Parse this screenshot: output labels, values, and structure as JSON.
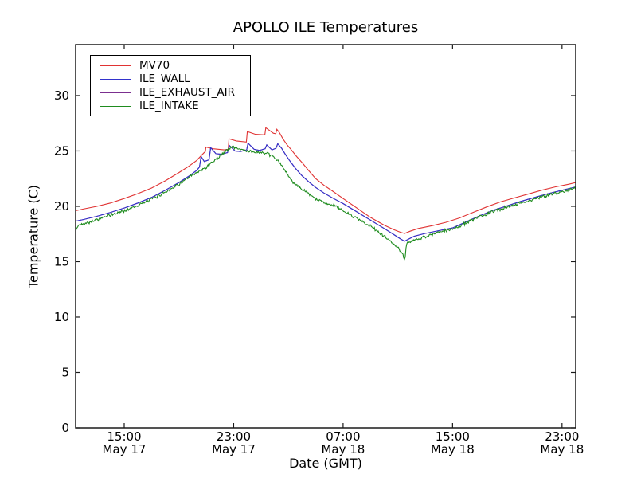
{
  "figure": {
    "title": "APOLLO ILE Temperatures",
    "background_color": "#ffffff",
    "axis_color": "#1a1a1a"
  },
  "chart_data": {
    "type": "line",
    "title": "APOLLO ILE Temperatures",
    "xlabel": "Date (GMT)",
    "ylabel": "Temperature (C)",
    "x_unit": "hours since May 17 00:00 GMT",
    "xlim": [
      11.45,
      48.0
    ],
    "ylim": [
      0,
      34.6
    ],
    "grid": false,
    "legend_position": "upper left",
    "x_ticks": [
      {
        "hour": 15,
        "time": "15:00",
        "date": "May 17"
      },
      {
        "hour": 23,
        "time": "23:00",
        "date": "May 17"
      },
      {
        "hour": 31,
        "time": "07:00",
        "date": "May 18"
      },
      {
        "hour": 39,
        "time": "15:00",
        "date": "May 18"
      },
      {
        "hour": 47,
        "time": "23:00",
        "date": "May 18"
      }
    ],
    "y_ticks": [
      0,
      5,
      10,
      15,
      20,
      25,
      30
    ],
    "series": [
      {
        "name": "MV70",
        "color": "#e03333",
        "noise": 0,
        "points": [
          [
            11.45,
            19.6
          ],
          [
            12,
            19.75
          ],
          [
            13,
            20.0
          ],
          [
            14,
            20.3
          ],
          [
            15,
            20.7
          ],
          [
            16,
            21.15
          ],
          [
            17,
            21.65
          ],
          [
            18,
            22.3
          ],
          [
            19,
            23.05
          ],
          [
            19.7,
            23.6
          ],
          [
            20.3,
            24.15
          ],
          [
            20.8,
            24.8
          ],
          [
            20.93,
            24.95
          ],
          [
            20.97,
            25.35
          ],
          [
            21.5,
            25.2
          ],
          [
            22.3,
            25.1
          ],
          [
            22.6,
            25.15
          ],
          [
            22.66,
            26.1
          ],
          [
            23.2,
            25.9
          ],
          [
            23.93,
            25.8
          ],
          [
            24.0,
            26.75
          ],
          [
            24.6,
            26.5
          ],
          [
            25.28,
            26.45
          ],
          [
            25.35,
            27.1
          ],
          [
            25.9,
            26.6
          ],
          [
            26.08,
            26.55
          ],
          [
            26.16,
            26.95
          ],
          [
            26.35,
            26.65
          ],
          [
            26.6,
            26.1
          ],
          [
            26.9,
            25.55
          ],
          [
            27.15,
            25.2
          ],
          [
            27.6,
            24.5
          ],
          [
            28.0,
            23.95
          ],
          [
            28.5,
            23.2
          ],
          [
            29.0,
            22.5
          ],
          [
            29.6,
            21.9
          ],
          [
            30.2,
            21.4
          ],
          [
            31.0,
            20.7
          ],
          [
            32.0,
            19.85
          ],
          [
            33.0,
            19.0
          ],
          [
            34.0,
            18.3
          ],
          [
            34.7,
            17.9
          ],
          [
            35.2,
            17.65
          ],
          [
            35.5,
            17.55
          ],
          [
            35.9,
            17.75
          ],
          [
            36.5,
            18.0
          ],
          [
            37.5,
            18.25
          ],
          [
            38.5,
            18.55
          ],
          [
            39.5,
            18.95
          ],
          [
            40.5,
            19.45
          ],
          [
            41.5,
            19.95
          ],
          [
            42.5,
            20.4
          ],
          [
            43.5,
            20.75
          ],
          [
            44.5,
            21.1
          ],
          [
            45.5,
            21.45
          ],
          [
            46.5,
            21.75
          ],
          [
            47.5,
            22.0
          ],
          [
            48.0,
            22.15
          ]
        ]
      },
      {
        "name": "ILE_WALL",
        "color": "#3333cc",
        "noise": 0,
        "points": [
          [
            11.45,
            18.65
          ],
          [
            12,
            18.8
          ],
          [
            13,
            19.1
          ],
          [
            14,
            19.45
          ],
          [
            15,
            19.85
          ],
          [
            16,
            20.3
          ],
          [
            17,
            20.8
          ],
          [
            18,
            21.45
          ],
          [
            19,
            22.15
          ],
          [
            19.7,
            22.7
          ],
          [
            20.3,
            23.25
          ],
          [
            20.5,
            23.55
          ],
          [
            20.62,
            24.5
          ],
          [
            20.85,
            24.05
          ],
          [
            21.2,
            24.2
          ],
          [
            21.32,
            25.3
          ],
          [
            21.7,
            24.75
          ],
          [
            22.1,
            24.7
          ],
          [
            22.55,
            24.85
          ],
          [
            22.68,
            25.5
          ],
          [
            23.1,
            25.0
          ],
          [
            23.5,
            24.95
          ],
          [
            23.95,
            25.1
          ],
          [
            24.05,
            25.7
          ],
          [
            24.5,
            25.15
          ],
          [
            24.9,
            25.05
          ],
          [
            25.3,
            25.2
          ],
          [
            25.42,
            25.55
          ],
          [
            25.8,
            25.1
          ],
          [
            26.1,
            25.25
          ],
          [
            26.22,
            25.65
          ],
          [
            26.5,
            25.25
          ],
          [
            26.75,
            24.75
          ],
          [
            27.05,
            24.2
          ],
          [
            27.5,
            23.45
          ],
          [
            28.0,
            22.75
          ],
          [
            28.5,
            22.2
          ],
          [
            29.0,
            21.7
          ],
          [
            29.6,
            21.2
          ],
          [
            30.3,
            20.7
          ],
          [
            31.0,
            20.25
          ],
          [
            32.0,
            19.5
          ],
          [
            33.0,
            18.75
          ],
          [
            34.0,
            18.0
          ],
          [
            34.7,
            17.45
          ],
          [
            35.2,
            17.05
          ],
          [
            35.5,
            16.85
          ],
          [
            35.8,
            17.05
          ],
          [
            36.2,
            17.3
          ],
          [
            37.0,
            17.55
          ],
          [
            38.0,
            17.8
          ],
          [
            39.0,
            18.05
          ],
          [
            40.0,
            18.6
          ],
          [
            41.0,
            19.15
          ],
          [
            42.0,
            19.65
          ],
          [
            43.0,
            20.05
          ],
          [
            44.0,
            20.45
          ],
          [
            45.0,
            20.8
          ],
          [
            46.0,
            21.15
          ],
          [
            47.0,
            21.45
          ],
          [
            48.0,
            21.75
          ]
        ]
      },
      {
        "name": "ILE_EXHAUST_AIR",
        "color": "#7b2f8f",
        "noise": 0,
        "points": [
          [
            11.45,
            18.65
          ],
          [
            12,
            18.8
          ],
          [
            13,
            19.1
          ],
          [
            14,
            19.45
          ],
          [
            15,
            19.85
          ],
          [
            16,
            20.3
          ],
          [
            17,
            20.8
          ],
          [
            18,
            21.45
          ],
          [
            19,
            22.15
          ],
          [
            19.7,
            22.7
          ],
          [
            20.3,
            23.25
          ],
          [
            20.5,
            23.55
          ],
          [
            20.62,
            24.5
          ],
          [
            20.85,
            24.05
          ],
          [
            21.2,
            24.2
          ],
          [
            21.32,
            25.3
          ],
          [
            21.7,
            24.75
          ],
          [
            22.1,
            24.7
          ],
          [
            22.55,
            24.85
          ],
          [
            22.68,
            25.5
          ],
          [
            23.1,
            25.0
          ],
          [
            23.5,
            24.95
          ],
          [
            23.95,
            25.1
          ],
          [
            24.05,
            25.7
          ],
          [
            24.5,
            25.15
          ],
          [
            24.9,
            25.05
          ],
          [
            25.3,
            25.2
          ],
          [
            25.42,
            25.55
          ],
          [
            25.8,
            25.1
          ],
          [
            26.1,
            25.25
          ],
          [
            26.22,
            25.65
          ],
          [
            26.5,
            25.25
          ],
          [
            26.75,
            24.75
          ],
          [
            27.05,
            24.2
          ],
          [
            27.5,
            23.45
          ],
          [
            28.0,
            22.75
          ],
          [
            28.5,
            22.2
          ],
          [
            29.0,
            21.7
          ],
          [
            29.6,
            21.2
          ],
          [
            30.3,
            20.7
          ],
          [
            31.0,
            20.25
          ],
          [
            32.0,
            19.5
          ],
          [
            33.0,
            18.75
          ],
          [
            34.0,
            18.0
          ],
          [
            34.7,
            17.45
          ],
          [
            35.2,
            17.05
          ],
          [
            35.5,
            16.85
          ],
          [
            35.8,
            17.05
          ],
          [
            36.2,
            17.3
          ],
          [
            37.0,
            17.55
          ],
          [
            38.0,
            17.8
          ],
          [
            39.0,
            18.05
          ],
          [
            40.0,
            18.6
          ],
          [
            41.0,
            19.15
          ],
          [
            42.0,
            19.65
          ],
          [
            43.0,
            20.05
          ],
          [
            44.0,
            20.45
          ],
          [
            45.0,
            20.8
          ],
          [
            46.0,
            21.15
          ],
          [
            47.0,
            21.45
          ],
          [
            48.0,
            21.75
          ]
        ]
      },
      {
        "name": "ILE_INTAKE",
        "color": "#1f8c1f",
        "noise": 0.17,
        "points": [
          [
            11.45,
            17.65
          ],
          [
            11.55,
            18.1
          ],
          [
            11.7,
            18.3
          ],
          [
            12,
            18.45
          ],
          [
            12.5,
            18.6
          ],
          [
            13,
            18.8
          ],
          [
            13.5,
            19.0
          ],
          [
            14,
            19.2
          ],
          [
            14.5,
            19.4
          ],
          [
            15,
            19.6
          ],
          [
            15.5,
            19.85
          ],
          [
            16,
            20.1
          ],
          [
            16.5,
            20.35
          ],
          [
            17,
            20.65
          ],
          [
            17.5,
            20.95
          ],
          [
            18,
            21.3
          ],
          [
            18.5,
            21.65
          ],
          [
            19,
            22.0
          ],
          [
            19.5,
            22.4
          ],
          [
            20,
            22.8
          ],
          [
            20.5,
            23.15
          ],
          [
            21,
            23.55
          ],
          [
            21.5,
            24.05
          ],
          [
            22,
            24.55
          ],
          [
            22.4,
            24.95
          ],
          [
            22.8,
            25.35
          ],
          [
            23.1,
            25.3
          ],
          [
            23.5,
            25.15
          ],
          [
            24,
            25.0
          ],
          [
            24.5,
            24.9
          ],
          [
            25,
            24.85
          ],
          [
            25.5,
            24.7
          ],
          [
            25.8,
            24.55
          ],
          [
            26.1,
            24.3
          ],
          [
            26.4,
            23.85
          ],
          [
            26.8,
            23.15
          ],
          [
            27.2,
            22.35
          ],
          [
            27.6,
            21.95
          ],
          [
            28,
            21.5
          ],
          [
            28.4,
            21.2
          ],
          [
            29,
            20.65
          ],
          [
            29.5,
            20.4
          ],
          [
            30,
            20.2
          ],
          [
            30.6,
            19.95
          ],
          [
            31,
            19.55
          ],
          [
            31.5,
            19.25
          ],
          [
            32,
            18.95
          ],
          [
            32.5,
            18.55
          ],
          [
            33,
            18.2
          ],
          [
            33.5,
            17.75
          ],
          [
            34,
            17.3
          ],
          [
            34.5,
            16.8
          ],
          [
            35,
            16.25
          ],
          [
            35.3,
            15.75
          ],
          [
            35.45,
            15.35
          ],
          [
            35.52,
            15.05
          ],
          [
            35.6,
            16.3
          ],
          [
            35.7,
            16.75
          ],
          [
            36,
            16.9
          ],
          [
            36.5,
            17.0
          ],
          [
            37,
            17.25
          ],
          [
            37.5,
            17.45
          ],
          [
            38,
            17.65
          ],
          [
            38.5,
            17.8
          ],
          [
            39,
            17.95
          ],
          [
            39.5,
            18.2
          ],
          [
            40,
            18.5
          ],
          [
            40.5,
            18.8
          ],
          [
            41,
            19.05
          ],
          [
            41.5,
            19.3
          ],
          [
            42,
            19.55
          ],
          [
            42.5,
            19.75
          ],
          [
            43,
            19.95
          ],
          [
            43.5,
            20.15
          ],
          [
            44,
            20.3
          ],
          [
            44.5,
            20.5
          ],
          [
            45,
            20.65
          ],
          [
            45.5,
            20.85
          ],
          [
            46,
            21.0
          ],
          [
            46.5,
            21.2
          ],
          [
            47,
            21.35
          ],
          [
            47.5,
            21.5
          ],
          [
            48,
            21.65
          ]
        ]
      }
    ]
  }
}
